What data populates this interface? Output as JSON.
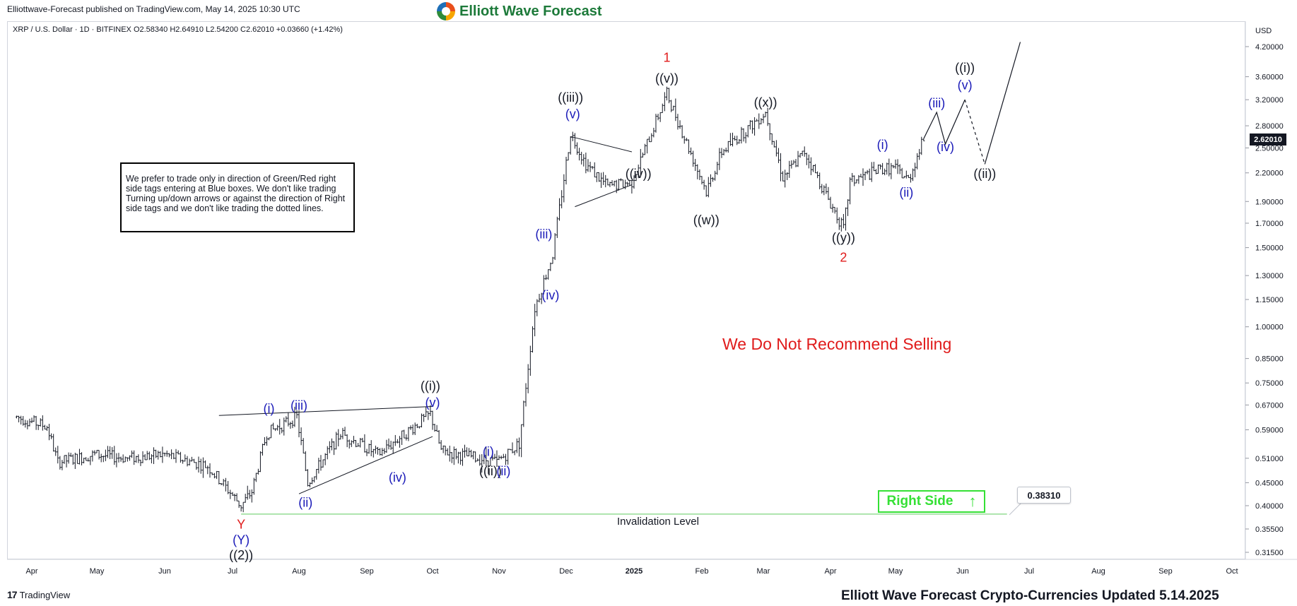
{
  "header": {
    "published": "Elliottwave-Forecast published on TradingView.com, May 14, 2025 10:30 UTC",
    "brand": "Elliott Wave Forecast"
  },
  "chart_info": {
    "pair_line": "XRP / U.S. Dollar · 1D · BITFINEX  O2.58340  H2.64910  L2.54200  C2.62010  +0.03660 (+1.42%)",
    "currency": "USD",
    "current_price": "2.62010"
  },
  "note": "We prefer to trade only in direction of Green/Red right side tags entering at Blue boxes. We don't like trading Turning up/down arrows or against the direction of Right side tags and we don't like trading the dotted lines.",
  "recommendation": "We Do Not Recommend Selling",
  "right_side": {
    "label": "Right Side",
    "arrow": "↑",
    "color": "#35e035"
  },
  "invalidation": {
    "label": "Invalidation Level",
    "value": "0.38310"
  },
  "footer": "Elliott Wave Forecast Crypto-Currencies Updated 5.14.2025",
  "tradingview": "TradingView",
  "colors": {
    "wave_black": "#131722",
    "wave_blue": "#1a1ab8",
    "wave_red": "#e01b1b",
    "candle": "#131722",
    "invalidation_line": "#7fd67f"
  },
  "chart_data": {
    "type": "candlestick",
    "y_scale": "log",
    "ylim": [
      0.29,
      4.6
    ],
    "y_ticks": [
      "4.20000",
      "3.60000",
      "3.20000",
      "2.80000",
      "2.50000",
      "2.20000",
      "1.90000",
      "1.70000",
      "1.50000",
      "1.30000",
      "1.15000",
      "1.00000",
      "0.85000",
      "0.75000",
      "0.67000",
      "0.59000",
      "0.51000",
      "0.45000",
      "0.40000",
      "0.35500",
      "0.31500"
    ],
    "x_ticks": [
      "Apr",
      "May",
      "Jun",
      "Jul",
      "Aug",
      "Sep",
      "Oct",
      "Nov",
      "Dec",
      "2025",
      "Feb",
      "Mar",
      "Apr",
      "May",
      "Jun",
      "Jul",
      "Aug",
      "Sep",
      "Oct"
    ],
    "x_tick_dates": [
      "2024-04-01",
      "2024-05-01",
      "2024-06-01",
      "2024-07-01",
      "2024-08-01",
      "2024-09-01",
      "2024-10-01",
      "2024-11-01",
      "2024-12-01",
      "2025-01-01",
      "2025-02-01",
      "2025-03-01",
      "2025-04-01",
      "2025-05-01",
      "2025-06-01",
      "2025-07-01",
      "2025-08-01",
      "2025-09-01",
      "2025-10-01"
    ],
    "price_path": [
      [
        "2024-03-25",
        0.63
      ],
      [
        "2024-04-08",
        0.6
      ],
      [
        "2024-04-13",
        0.5
      ],
      [
        "2024-04-30",
        0.52
      ],
      [
        "2024-05-15",
        0.51
      ],
      [
        "2024-06-01",
        0.52
      ],
      [
        "2024-06-20",
        0.49
      ],
      [
        "2024-07-05",
        0.4
      ],
      [
        "2024-07-10",
        0.43
      ],
      [
        "2024-07-17",
        0.58
      ],
      [
        "2024-07-31",
        0.63
      ],
      [
        "2024-08-05",
        0.45
      ],
      [
        "2024-08-20",
        0.58
      ],
      [
        "2024-09-06",
        0.52
      ],
      [
        "2024-09-30",
        0.64
      ],
      [
        "2024-10-05",
        0.53
      ],
      [
        "2024-10-31",
        0.5
      ],
      [
        "2024-11-10",
        0.55
      ],
      [
        "2024-11-17",
        1.1
      ],
      [
        "2024-11-25",
        1.45
      ],
      [
        "2024-12-03",
        2.7
      ],
      [
        "2024-12-10",
        2.3
      ],
      [
        "2024-12-20",
        2.05
      ],
      [
        "2024-12-31",
        2.1
      ],
      [
        "2025-01-16",
        3.3
      ],
      [
        "2025-02-03",
        2.0
      ],
      [
        "2025-02-10",
        2.45
      ],
      [
        "2025-03-02",
        3.0
      ],
      [
        "2025-03-10",
        2.15
      ],
      [
        "2025-03-20",
        2.45
      ],
      [
        "2025-04-07",
        1.65
      ],
      [
        "2025-04-10",
        2.1
      ],
      [
        "2025-04-25",
        2.25
      ],
      [
        "2025-05-01",
        2.25
      ],
      [
        "2025-05-07",
        2.12
      ],
      [
        "2025-05-14",
        2.62
      ]
    ],
    "projection": {
      "solid_1": [
        [
          "2025-05-14",
          2.62
        ],
        [
          "2025-05-20",
          3.0
        ],
        [
          "2025-05-24",
          2.55
        ],
        [
          "2025-06-02",
          3.2
        ]
      ],
      "dotted": [
        [
          "2025-06-02",
          3.2
        ],
        [
          "2025-06-11",
          2.3
        ]
      ],
      "solid_2": [
        [
          "2025-06-11",
          2.3
        ],
        [
          "2025-06-27",
          4.3
        ]
      ]
    },
    "invalidation_level": 0.3831,
    "invalidation_line": [
      [
        "2024-07-05",
        0.3831
      ],
      [
        "2025-06-21",
        0.3831
      ]
    ],
    "triangle_lines": [
      [
        [
          "2024-06-25",
          0.635
        ],
        [
          "2024-10-01",
          0.665
        ]
      ],
      [
        [
          "2024-08-01",
          0.425
        ],
        [
          "2024-10-01",
          0.57
        ]
      ],
      [
        [
          "2024-12-03",
          2.65
        ],
        [
          "2024-12-31",
          2.45
        ]
      ],
      [
        [
          "2024-12-05",
          1.85
        ],
        [
          "2024-12-31",
          2.07
        ]
      ]
    ],
    "wave_labels": [
      {
        "text": "1",
        "date": "2025-01-16",
        "price": 3.95,
        "color": "red"
      },
      {
        "text": "((v))",
        "date": "2025-01-16",
        "price": 3.55,
        "color": "black"
      },
      {
        "text": "((iii))",
        "date": "2024-12-03",
        "price": 3.22,
        "color": "black"
      },
      {
        "text": "(v)",
        "date": "2024-12-04",
        "price": 2.96,
        "color": "blue"
      },
      {
        "text": "((iv))",
        "date": "2025-01-03",
        "price": 2.18,
        "color": "black"
      },
      {
        "text": "((w))",
        "date": "2025-02-03",
        "price": 1.72,
        "color": "black"
      },
      {
        "text": "((x))",
        "date": "2025-03-02",
        "price": 3.14,
        "color": "black"
      },
      {
        "text": "((y))",
        "date": "2025-04-07",
        "price": 1.57,
        "color": "black"
      },
      {
        "text": "2",
        "date": "2025-04-07",
        "price": 1.42,
        "color": "red"
      },
      {
        "text": "(i)",
        "date": "2025-04-25",
        "price": 2.53,
        "color": "blue"
      },
      {
        "text": "(ii)",
        "date": "2025-05-06",
        "price": 1.98,
        "color": "blue"
      },
      {
        "text": "(iii)",
        "date": "2025-05-20",
        "price": 3.13,
        "color": "blue"
      },
      {
        "text": "(iv)",
        "date": "2025-05-24",
        "price": 2.5,
        "color": "blue"
      },
      {
        "text": "(v)",
        "date": "2025-06-02",
        "price": 3.43,
        "color": "blue"
      },
      {
        "text": "((i))",
        "date": "2025-06-02",
        "price": 3.75,
        "color": "black"
      },
      {
        "text": "((ii))",
        "date": "2025-06-11",
        "price": 2.18,
        "color": "black"
      },
      {
        "text": "(iii)",
        "date": "2024-11-21",
        "price": 1.6,
        "color": "blue"
      },
      {
        "text": "(iv)",
        "date": "2024-11-24",
        "price": 1.17,
        "color": "blue"
      },
      {
        "text": "((i))",
        "date": "2024-09-30",
        "price": 0.735,
        "color": "black"
      },
      {
        "text": "(v)",
        "date": "2024-10-01",
        "price": 0.675,
        "color": "blue"
      },
      {
        "text": "(i)",
        "date": "2024-07-18",
        "price": 0.655,
        "color": "blue"
      },
      {
        "text": "(iii)",
        "date": "2024-08-01",
        "price": 0.665,
        "color": "blue"
      },
      {
        "text": "(ii)",
        "date": "2024-08-04",
        "price": 0.405,
        "color": "blue"
      },
      {
        "text": "(iv)",
        "date": "2024-09-15",
        "price": 0.46,
        "color": "blue"
      },
      {
        "text": "(i)",
        "date": "2024-10-27",
        "price": 0.525,
        "color": "blue"
      },
      {
        "text": "((ii))",
        "date": "2024-10-28",
        "price": 0.475,
        "color": "black"
      },
      {
        "text": "(ii)",
        "date": "2024-11-03",
        "price": 0.475,
        "color": "blue"
      },
      {
        "text": "Y",
        "date": "2024-07-05",
        "price": 0.362,
        "color": "red"
      },
      {
        "text": "(Y)",
        "date": "2024-07-05",
        "price": 0.334,
        "color": "blue"
      },
      {
        "text": "((2))",
        "date": "2024-07-05",
        "price": 0.309,
        "color": "black"
      }
    ]
  }
}
